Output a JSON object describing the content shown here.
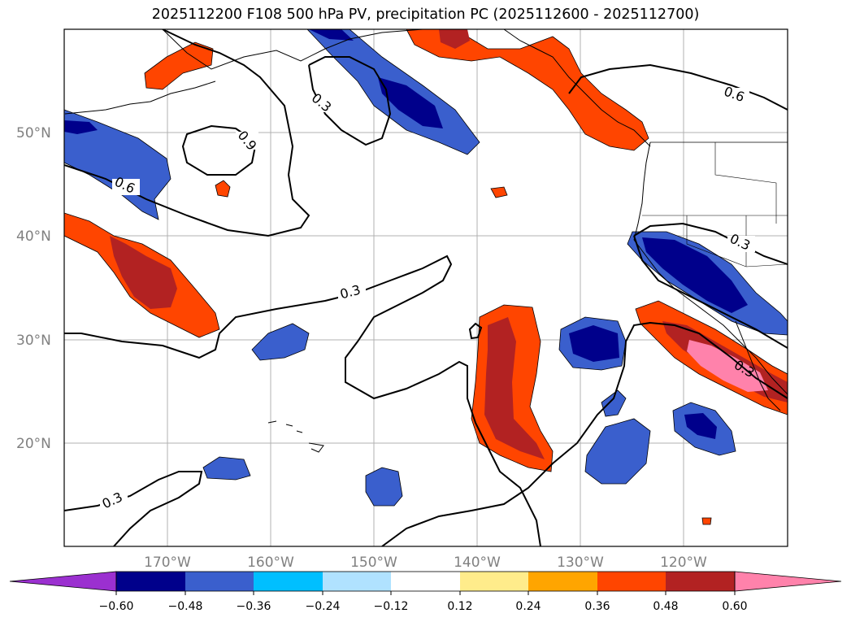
{
  "title": "2025112200 F108 500 hPa PV, precipitation PC (2025112600 - 2025112700)",
  "map": {
    "lat_labels": [
      "50°N",
      "40°N",
      "30°N",
      "20°N"
    ],
    "lon_labels": [
      "170°W",
      "160°W",
      "150°W",
      "140°W",
      "130°W",
      "120°W"
    ],
    "extent": {
      "lon_min": -180,
      "lon_max": -110,
      "lat_min": 10,
      "lat_max": 60
    },
    "gridlines": true,
    "contour_labels": [
      "0.3",
      "0.9",
      "0.6",
      "0.3",
      "0.6",
      "0.3",
      "0.3",
      "0.3"
    ]
  },
  "colorbar": {
    "ticks": [
      "−0.60",
      "−0.48",
      "−0.36",
      "−0.24",
      "−0.12",
      "0.12",
      "0.24",
      "0.36",
      "0.48",
      "0.60"
    ],
    "colors": [
      "#9b30d0",
      "#00008b",
      "#3a5fcd",
      "#00bfff",
      "#b0e2ff",
      "#ffffff",
      "#ffec8b",
      "#ffa500",
      "#ff4500",
      "#b22222",
      "#ff82ab"
    ]
  },
  "palette": {
    "neg_dark": "#00008b",
    "neg_mid": "#3a5fcd",
    "neg_light": "#00bfff",
    "pos_light": "#ffec8b",
    "pos_orange": "#ffa500",
    "pos_red": "#ff4500",
    "pos_dark": "#b22222",
    "pos_pink": "#ff82ab"
  }
}
